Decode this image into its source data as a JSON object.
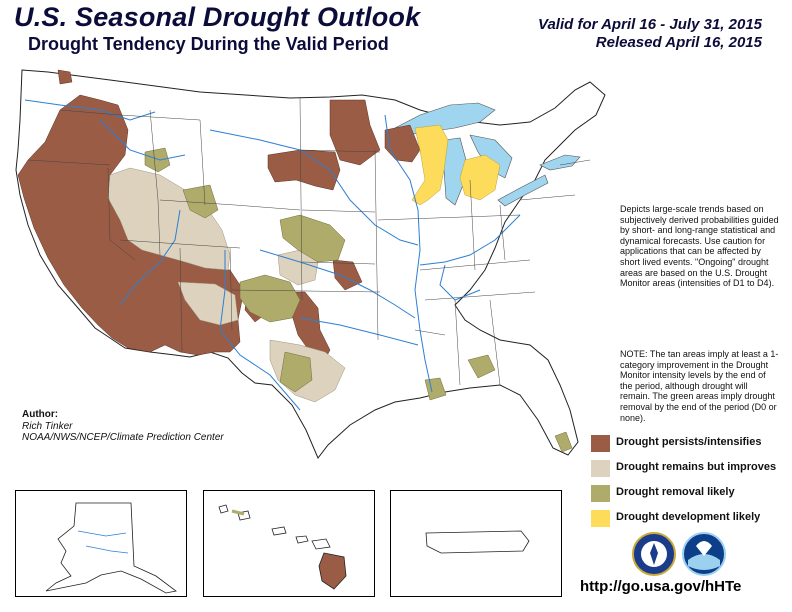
{
  "header": {
    "title": "U.S. Seasonal Drought Outlook",
    "subtitle": "Drought Tendency During the Valid Period",
    "valid": "Valid for April 16 - July 31, 2015",
    "released": "Released April 16, 2015"
  },
  "description": "Depicts large-scale trends based on subjectively derived probabilities guided by short- and long-range statistical and dynamical forecasts. Use caution for applications that can be affected by short lived events. \"Ongoing\" drought areas are based on the U.S. Drought Monitor areas (intensities of D1 to D4).",
  "note": "NOTE: The tan areas imply at least a 1-category improvement in the Drought Monitor intensity levels by the end of the period, although drought will remain. The green areas imply drought removal by the end of the period (D0 or none).",
  "author": {
    "label": "Author:",
    "name": "Rich Tinker",
    "org": "NOAA/NWS/NCEP/Climate Prediction Center"
  },
  "legend": [
    {
      "label": "Drought persists/intensifies",
      "color": "#9b5c45"
    },
    {
      "label": "Drought remains but improves",
      "color": "#ddd2bd"
    },
    {
      "label": "Drought removal likely",
      "color": "#afab6b"
    },
    {
      "label": "Drought development likely",
      "color": "#fddc5b"
    }
  ],
  "colors": {
    "persists": "#9b5c45",
    "improves": "#ddd2bd",
    "removal": "#afab6b",
    "development": "#fddc5b",
    "water": "#9fd5ee",
    "river": "#2d7fd3",
    "border": "#222222"
  },
  "insets": [
    "alaska",
    "hawaii",
    "puerto-rico"
  ],
  "icons": [
    "noaa-commerce-seal-icon",
    "noaa-logo-icon"
  ],
  "url": "http://go.usa.gov/hHTe"
}
